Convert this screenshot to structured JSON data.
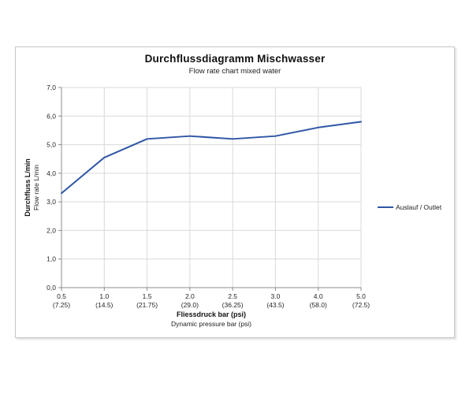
{
  "chart_data": {
    "type": "line",
    "title": "Durchflussdiagramm Mischwasser",
    "subtitle": "Flow rate chart mixed water",
    "xlabel": "Fliessdruck bar (psi)",
    "xlabel_sub": "Dynamic pressure bar (psi)",
    "ylabel": "Durchfluss L/min",
    "ylabel_sub": "Flow rate L/min",
    "categories": [
      "0.5",
      "1.0",
      "1.5",
      "2.0",
      "2.5",
      "3.0",
      "4.0",
      "5.0"
    ],
    "categories_psi": [
      "(7.25)",
      "(14.5)",
      "(21.75)",
      "(29.0)",
      "(36.25)",
      "(43.5)",
      "(58.0)",
      "(72.5)"
    ],
    "y_tick_labels": [
      "0,0",
      "1,0",
      "2,0",
      "3,0",
      "4,0",
      "5,0",
      "6,0",
      "7,0"
    ],
    "ylim": [
      0,
      7
    ],
    "grid": true,
    "legend_position": "right",
    "series": [
      {
        "name": "Auslauf / Outlet",
        "color": "#2f56a5",
        "values": [
          3.3,
          4.55,
          5.2,
          5.3,
          5.2,
          5.3,
          5.6,
          5.8
        ]
      }
    ],
    "colors": {
      "grid": "#d9d9d9",
      "axis": "#8c8c8c",
      "tick_text": "#262626"
    }
  }
}
